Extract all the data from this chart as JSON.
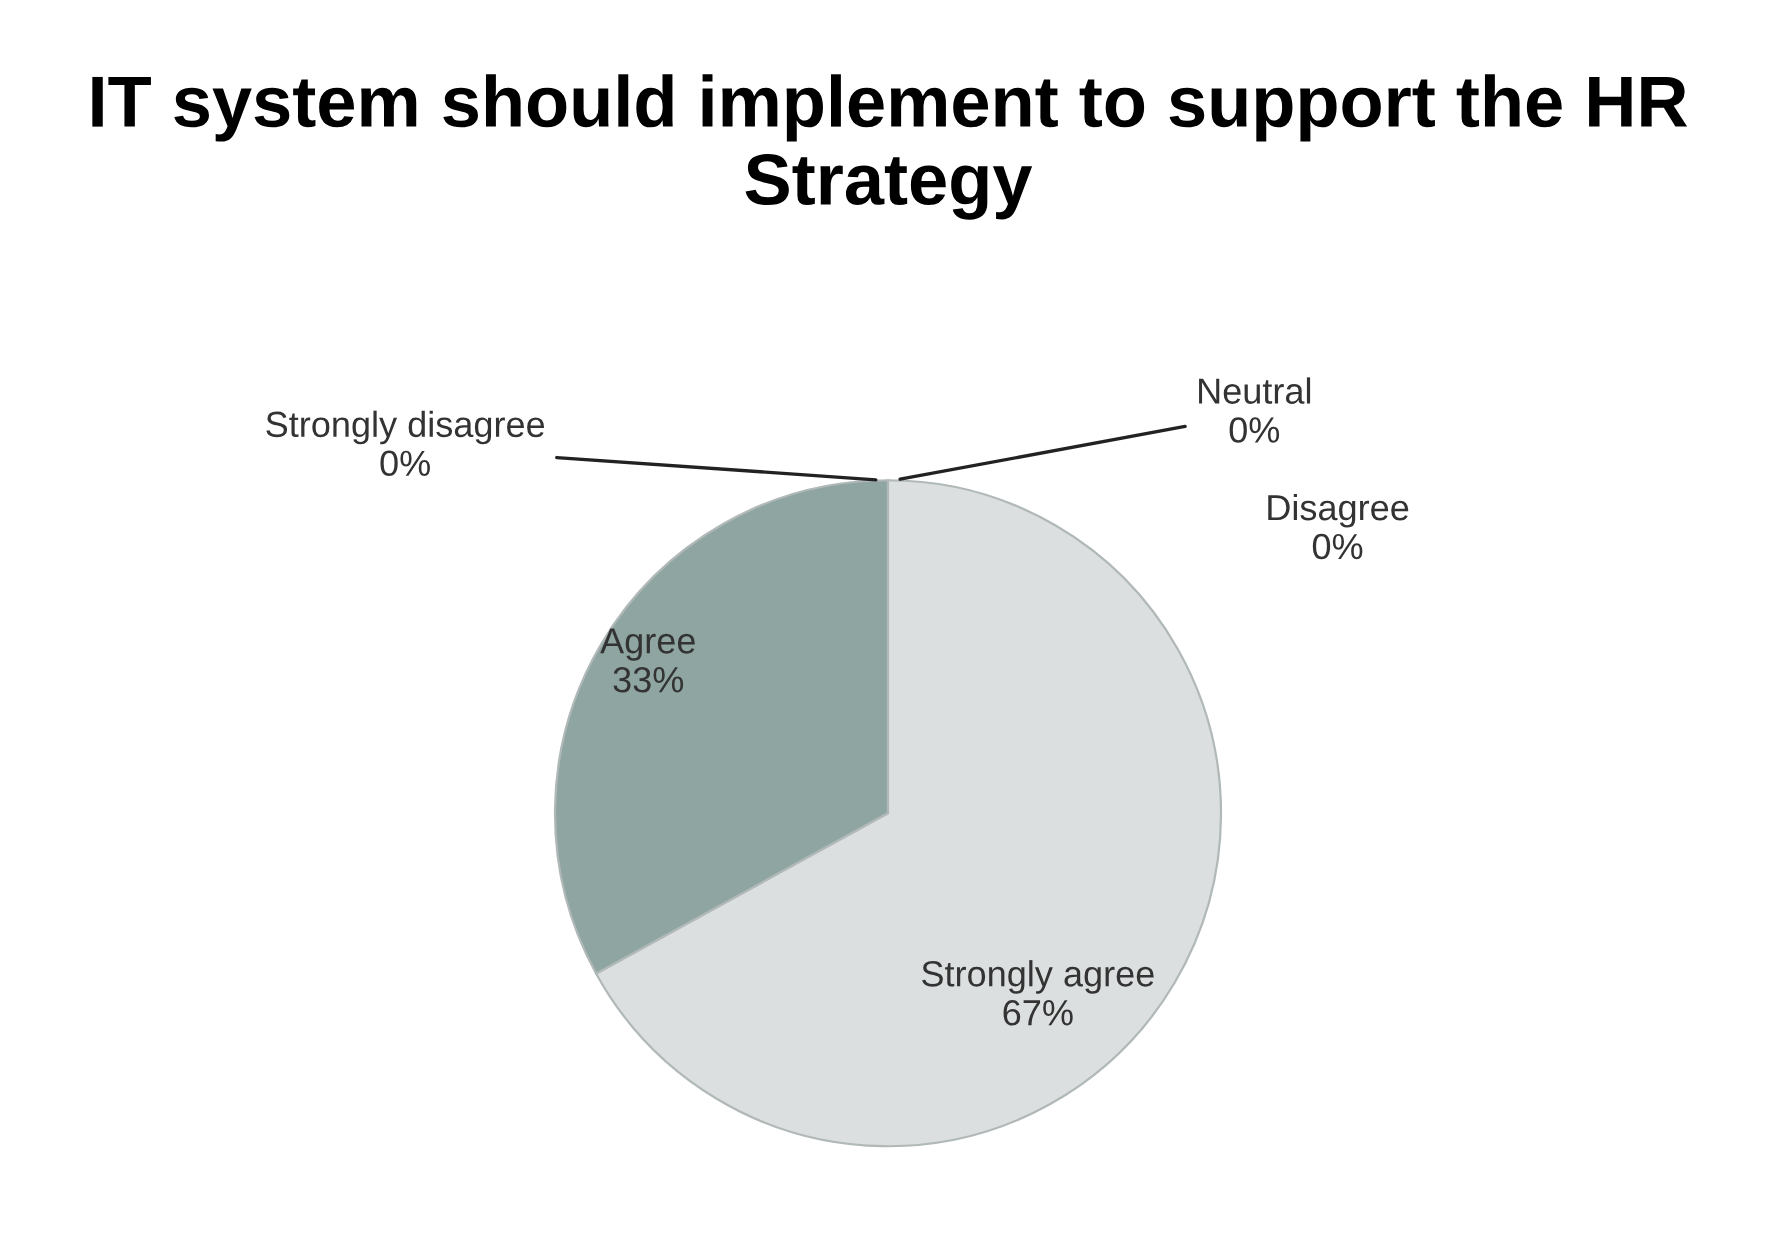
{
  "chart_data": {
    "type": "pie",
    "title": "IT system should implement to support the HR Strategy",
    "categories": [
      "Strongly disagree",
      "Disagree",
      "Neutral",
      "Agree",
      "Strongly agree"
    ],
    "values": [
      0,
      0,
      0,
      33,
      67
    ],
    "value_labels": [
      "0%",
      "0%",
      "0%",
      "33%",
      "67%"
    ],
    "colors": [
      "#4f6f6a",
      "#6f8f8a",
      "#a8bcb8",
      "#8fa5a1",
      "#dcdfdf"
    ],
    "legend": false
  }
}
